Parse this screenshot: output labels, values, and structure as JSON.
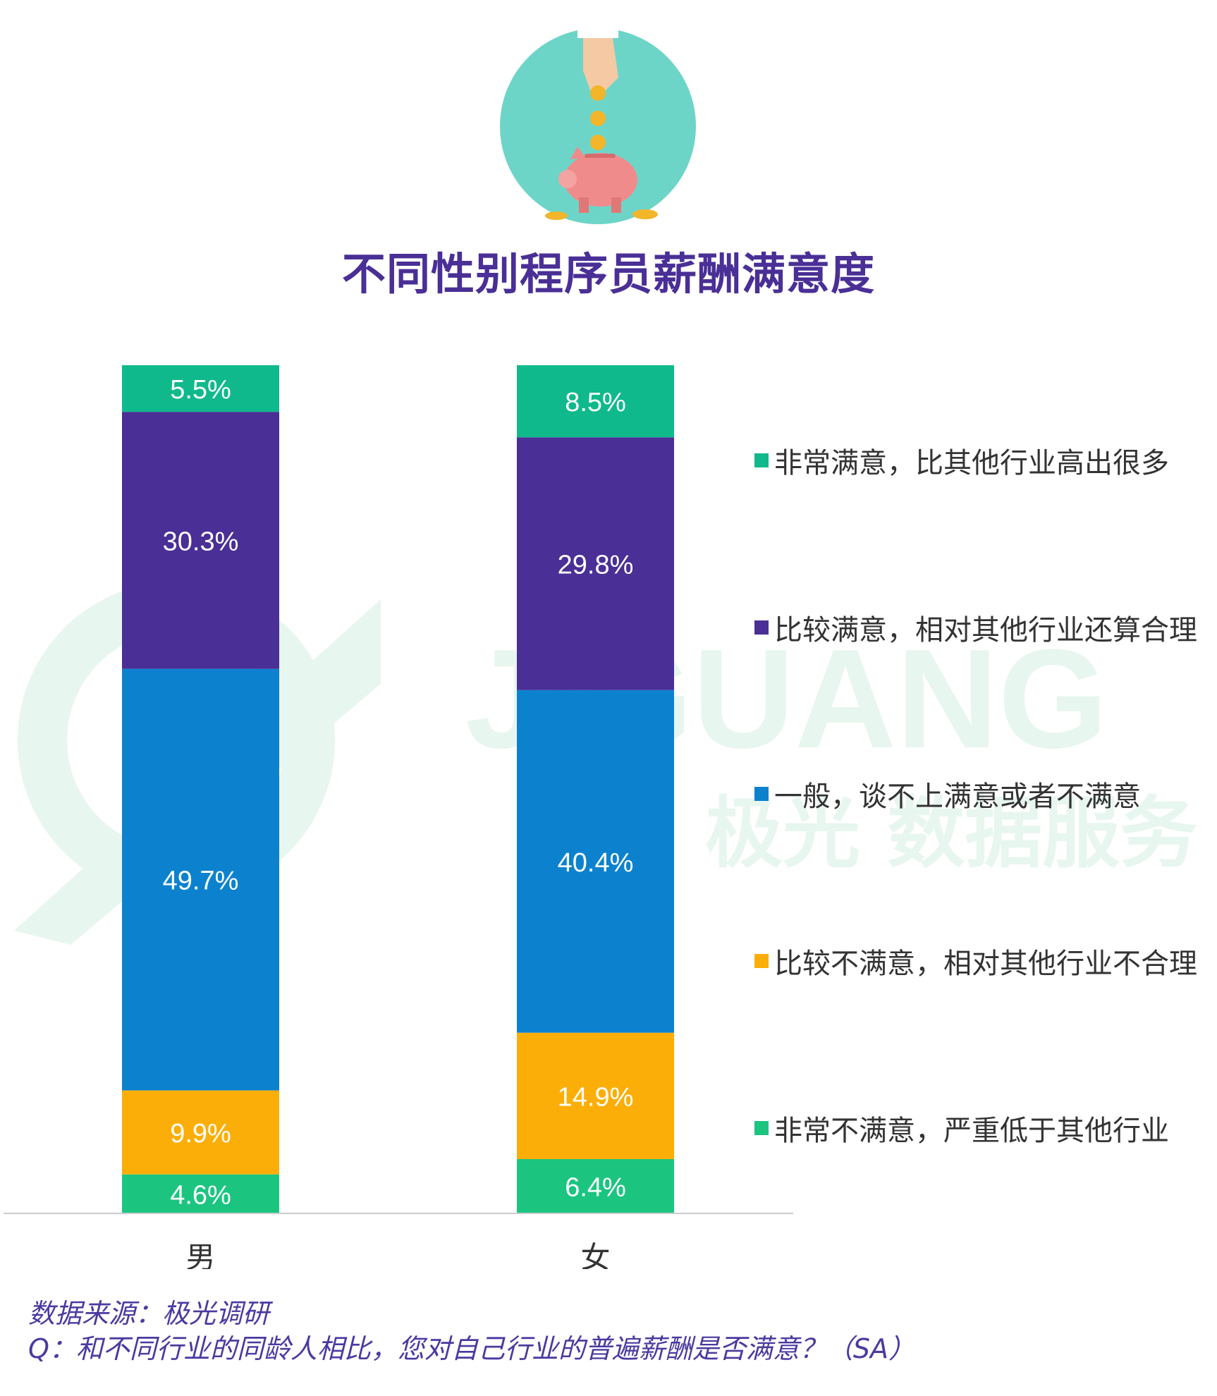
{
  "title": "不同性别程序员薪酬满意度",
  "colors": {
    "very_satisfied": "#10b98c",
    "fairly_satisfied": "#4a2f96",
    "neutral": "#0c82cf",
    "fairly_unsatisfied": "#fcae08",
    "very_unsatisfied": "#1bc580",
    "title": "#4a2f96",
    "footnote": "#4a3aa0",
    "watermark": "#e7f6ee"
  },
  "watermark": {
    "logo_text": "JIGUANG",
    "sub_text": "极光 数据服务"
  },
  "icon": {
    "name": "piggy-bank-coins-icon"
  },
  "chart_data": {
    "type": "bar",
    "stacked": true,
    "categories": [
      "男",
      "女"
    ],
    "ylim": [
      0,
      100
    ],
    "grid": false,
    "legend_position": "right",
    "series": [
      {
        "name": "非常不满意，严重低于其他行业",
        "color_key": "very_unsatisfied",
        "values": [
          4.6,
          6.4
        ]
      },
      {
        "name": "比较不满意，相对其他行业不合理",
        "color_key": "fairly_unsatisfied",
        "values": [
          9.9,
          14.9
        ]
      },
      {
        "name": "一般，谈不上满意或者不满意",
        "color_key": "neutral",
        "values": [
          49.7,
          40.4
        ]
      },
      {
        "name": "比较满意，相对其他行业还算合理",
        "color_key": "fairly_satisfied",
        "values": [
          30.3,
          29.8
        ]
      },
      {
        "name": "非常满意，比其他行业高出很多",
        "color_key": "very_satisfied",
        "values": [
          5.5,
          8.5
        ]
      }
    ],
    "labels": [
      [
        "4.6%",
        "6.4%"
      ],
      [
        "9.9%",
        "14.9%"
      ],
      [
        "49.7%",
        "40.4%"
      ],
      [
        "30.3%",
        "29.8%"
      ],
      [
        "5.5%",
        "8.5%"
      ]
    ]
  },
  "legend": [
    {
      "label": "非常满意，比其他行业高出很多",
      "color_key": "very_satisfied"
    },
    {
      "label": "比较满意，相对其他行业还算合理",
      "color_key": "fairly_satisfied"
    },
    {
      "label": "一般，谈不上满意或者不满意",
      "color_key": "neutral"
    },
    {
      "label": "比较不满意，相对其他行业不合理",
      "color_key": "fairly_unsatisfied"
    },
    {
      "label": "非常不满意，严重低于其他行业",
      "color_key": "very_unsatisfied"
    }
  ],
  "footnote": {
    "source": "数据来源：极光调研",
    "question": "Q：和不同行业的同龄人相比，您对自己行业的普遍薪酬是否满意？（SA）"
  }
}
